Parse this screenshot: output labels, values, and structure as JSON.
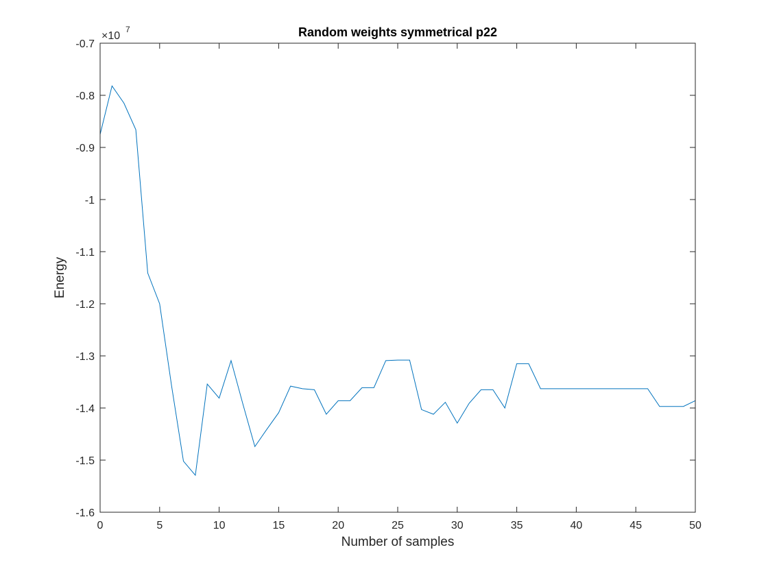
{
  "chart_data": {
    "type": "line",
    "title": "Random weights symmetrical p22",
    "xlabel": "Number of samples",
    "ylabel": "Energy",
    "y_multiplier": "×10",
    "y_multiplier_exponent": "7",
    "xlim": [
      0,
      50
    ],
    "ylim": [
      -1.6,
      -0.7
    ],
    "x_ticks": [
      "0",
      "5",
      "10",
      "15",
      "20",
      "25",
      "30",
      "35",
      "40",
      "45",
      "50"
    ],
    "y_ticks": [
      "-1.6",
      "-1.5",
      "-1.4",
      "-1.3",
      "-1.2",
      "-1.1",
      "-1",
      "-0.9",
      "-0.8",
      "-0.7"
    ],
    "grid": false,
    "line_color": "#0072bd",
    "series": [
      {
        "x": [
          0,
          1,
          2,
          3,
          4,
          5,
          6,
          7,
          8,
          9,
          10,
          11,
          12,
          13,
          14,
          15,
          16,
          17,
          18,
          19,
          20,
          21,
          22,
          23,
          24,
          25,
          26,
          27,
          28,
          29,
          30,
          31,
          32,
          33,
          34,
          35,
          36,
          37,
          38,
          39,
          40,
          41,
          42,
          43,
          44,
          45,
          46,
          47,
          48,
          49,
          50
        ],
        "values": [
          -0.875,
          -0.782,
          -0.815,
          -0.866,
          -1.141,
          -1.2,
          -1.357,
          -1.502,
          -1.529,
          -1.354,
          -1.381,
          -1.309,
          -1.393,
          -1.474,
          -1.441,
          -1.409,
          -1.358,
          -1.363,
          -1.365,
          -1.412,
          -1.386,
          -1.386,
          -1.361,
          -1.361,
          -1.309,
          -1.308,
          -1.308,
          -1.403,
          -1.412,
          -1.389,
          -1.429,
          -1.391,
          -1.365,
          -1.365,
          -1.4,
          -1.315,
          -1.315,
          -1.363,
          -1.363,
          -1.363,
          -1.363,
          -1.363,
          -1.363,
          -1.363,
          -1.363,
          -1.363,
          -1.363,
          -1.397,
          -1.397,
          -1.397,
          -1.386
        ]
      }
    ]
  }
}
